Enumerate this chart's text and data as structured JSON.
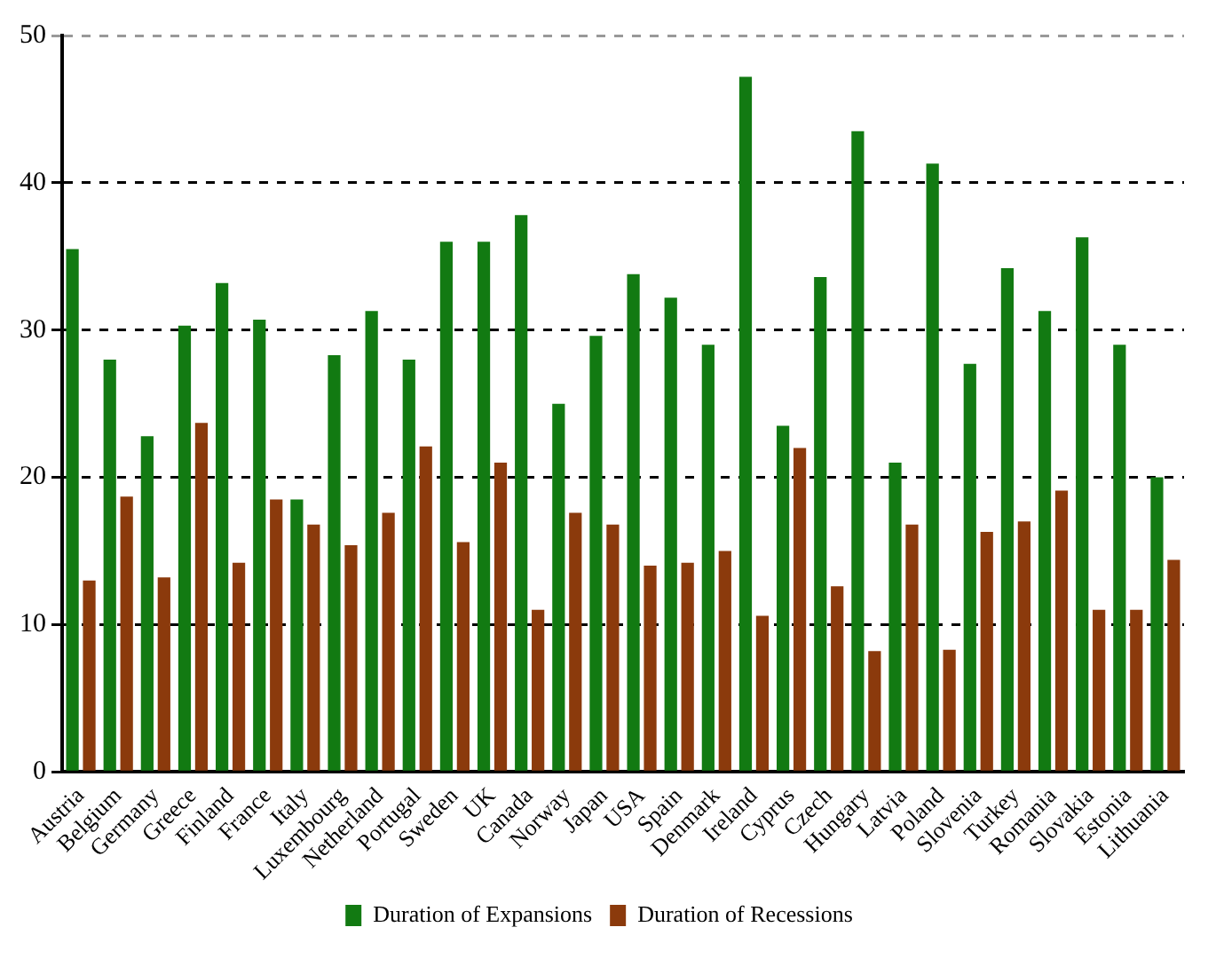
{
  "chart_data": {
    "type": "bar",
    "categories": [
      "Austria",
      "Belgium",
      "Germany",
      "Greece",
      "Finland",
      "France",
      "Italy",
      "Luxembourg",
      "Netherland",
      "Portugal",
      "Sweden",
      "UK",
      "Canada",
      "Norway",
      "Japan",
      "USA",
      "Spain",
      "Denmark",
      "Ireland",
      "Cyprus",
      "Czech",
      "Hungary",
      "Latvia",
      "Poland",
      "Slovenia",
      "Turkey",
      "Romania",
      "Slovakia",
      "Estonia",
      "Lithuania"
    ],
    "series": [
      {
        "name": "Duration of Expansions",
        "color": "#127a12",
        "values": [
          35.5,
          28,
          22.8,
          30.3,
          33.2,
          30.7,
          18.5,
          28.3,
          31.3,
          28,
          36,
          36,
          37.8,
          25,
          29.6,
          33.8,
          32.2,
          29,
          47.2,
          23.5,
          33.6,
          43.5,
          21,
          41.3,
          27.7,
          34.2,
          31.3,
          36.3,
          29,
          20
        ]
      },
      {
        "name": "Duration of Recessions",
        "color": "#8b3a0c",
        "values": [
          13,
          18.7,
          13.2,
          23.7,
          14.2,
          18.5,
          16.8,
          15.4,
          17.6,
          22.1,
          15.6,
          21,
          11,
          17.6,
          16.8,
          14,
          14.2,
          15,
          10.6,
          22,
          12.6,
          8.2,
          16.8,
          8.3,
          16.3,
          17,
          19.1,
          11,
          11,
          14.4
        ]
      }
    ],
    "ylim": [
      0,
      50
    ],
    "yticks": [
      0,
      10,
      20,
      30,
      40,
      50
    ],
    "grid": "y",
    "legend": "bottom"
  }
}
